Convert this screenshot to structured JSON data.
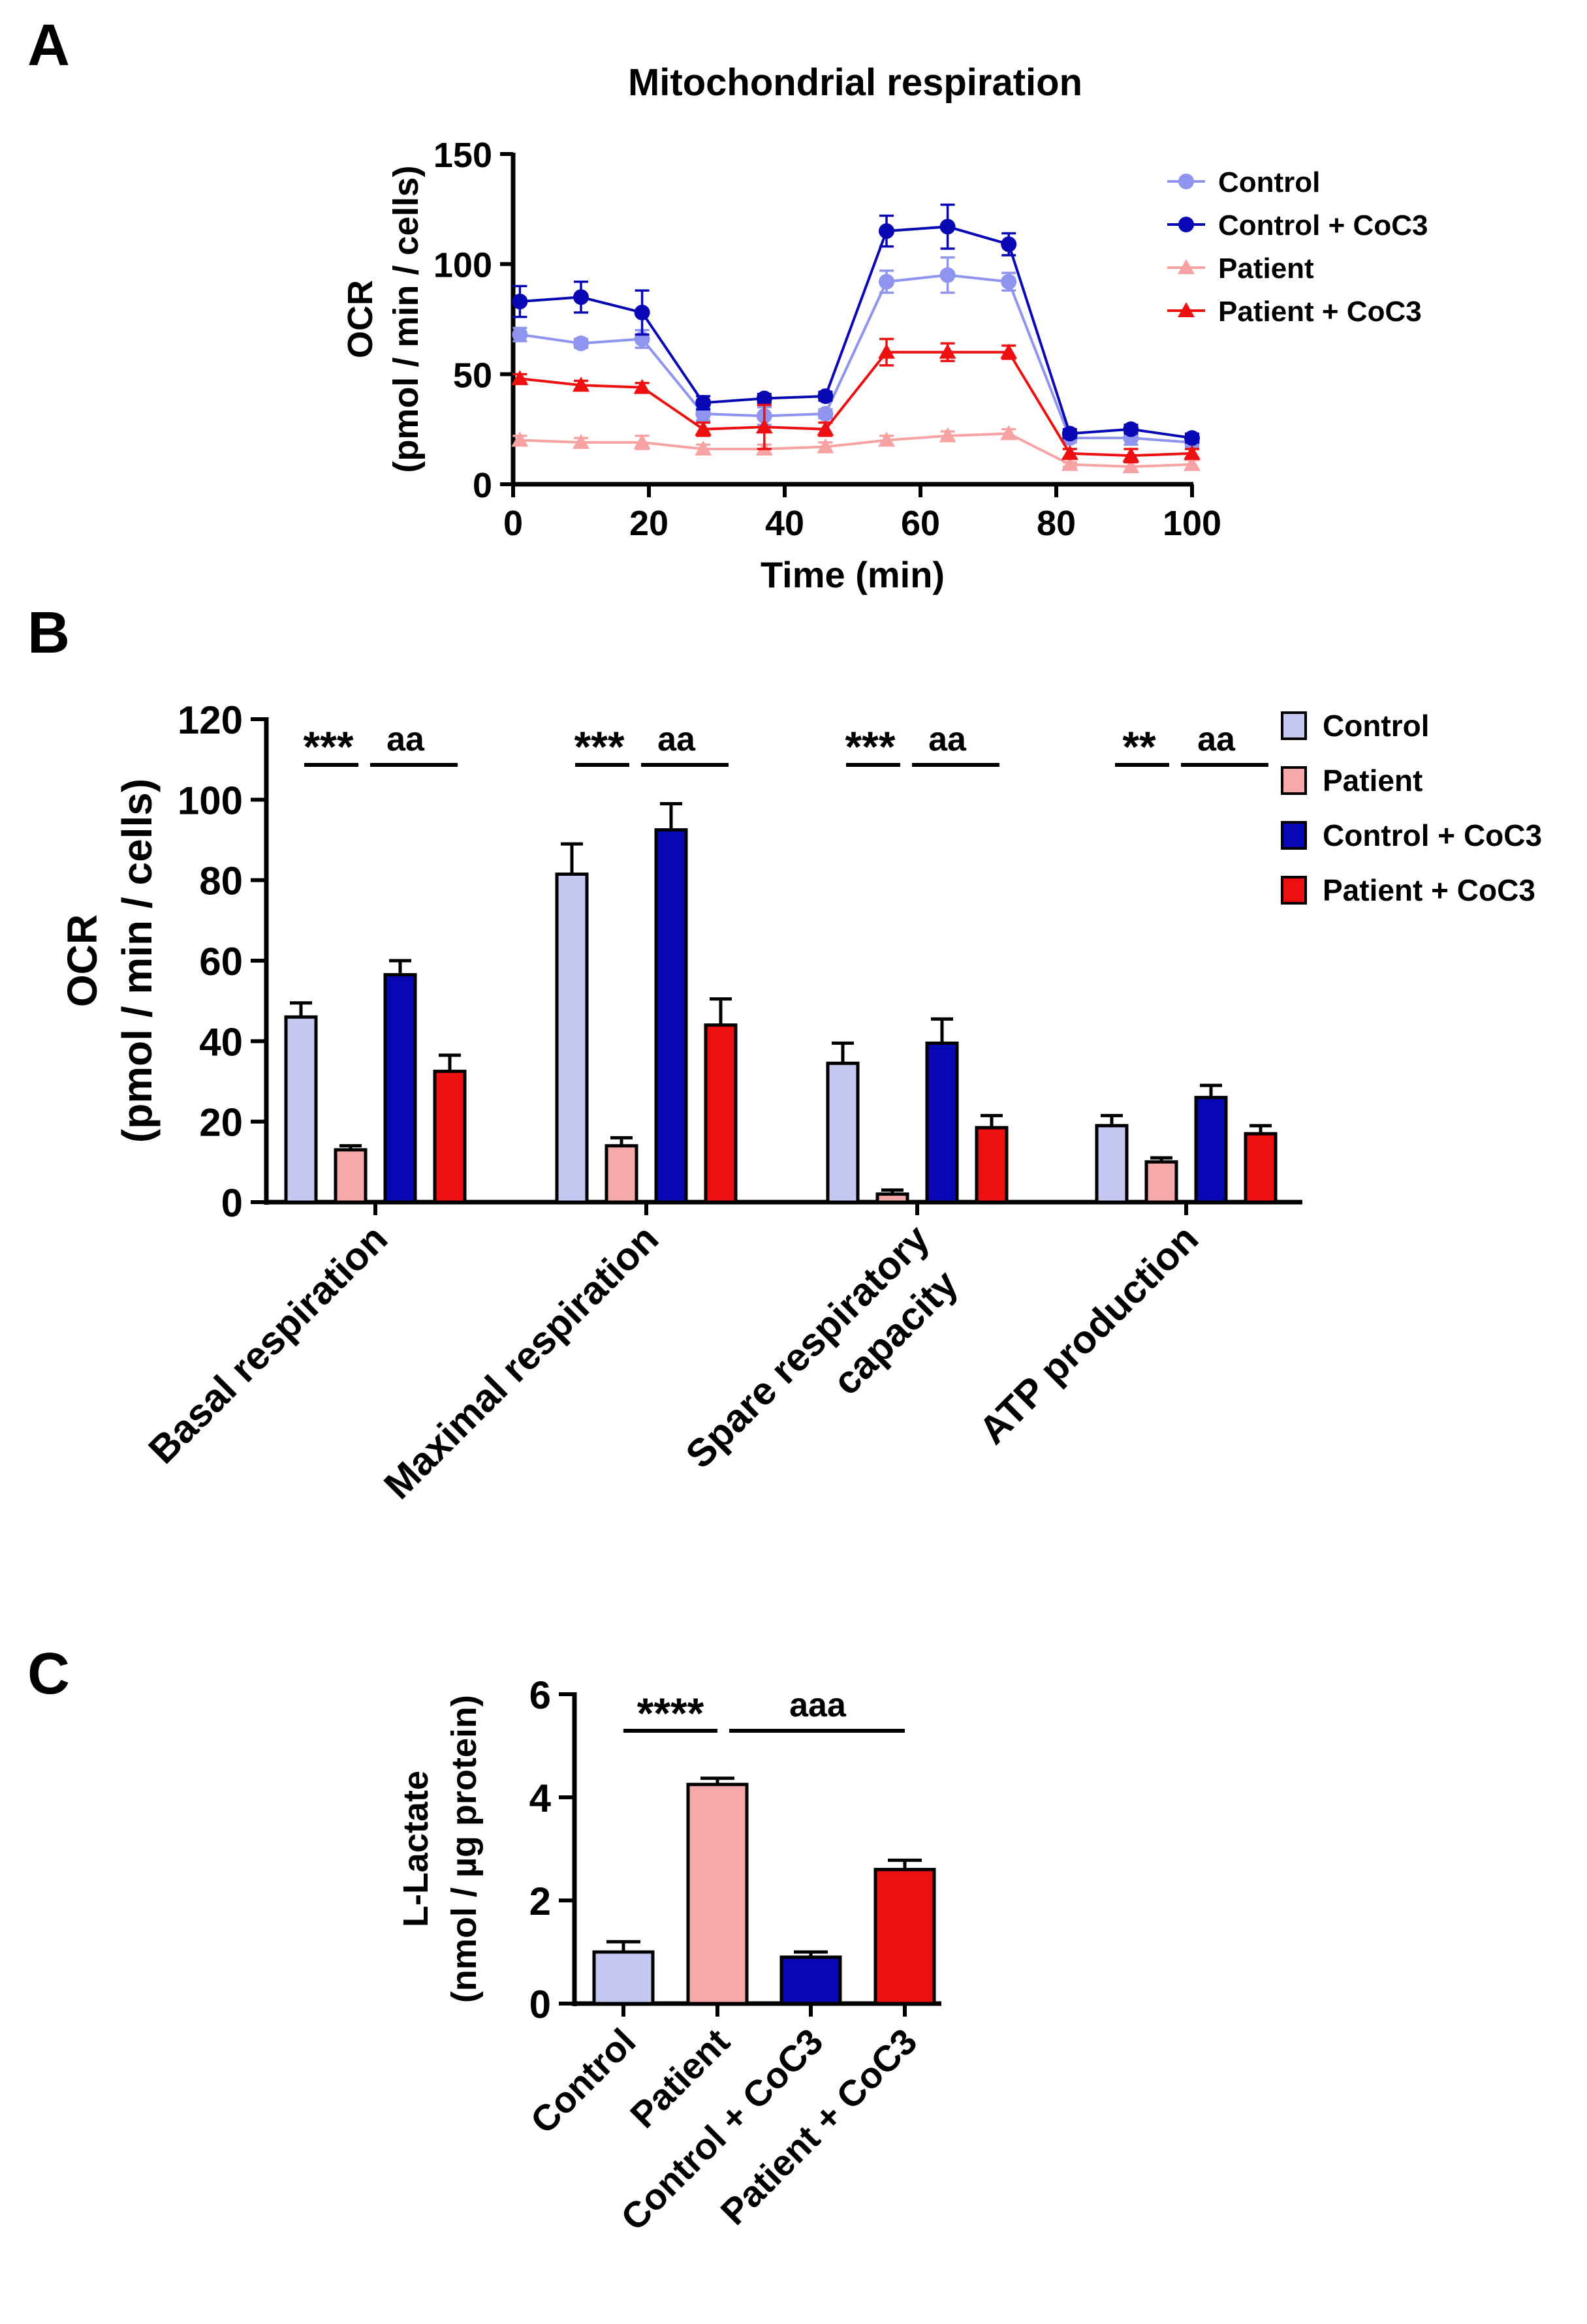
{
  "panels": {
    "A": {
      "letter": "A"
    },
    "B": {
      "letter": "B"
    },
    "C": {
      "letter": "C"
    }
  },
  "colors": {
    "control": "#c6c8f4",
    "control_line": "#8f94ee",
    "control_coc3": "#0707b3",
    "patient": "#f7a8a8",
    "patient_line": "#f7a3a3",
    "patient_coc3": "#ee1010",
    "axis": "#000000"
  },
  "chart_data": [
    {
      "id": "A",
      "type": "line",
      "title": "Mitochondrial respiration",
      "xlabel": "Time (min)",
      "ylabel": [
        "OCR",
        "(pmol / min / cells)"
      ],
      "xlim": [
        0,
        100
      ],
      "ylim": [
        0,
        150
      ],
      "xticks": [
        0,
        20,
        40,
        60,
        80,
        100
      ],
      "yticks": [
        0,
        50,
        100,
        150
      ],
      "legend_position": "top-right",
      "x": [
        1,
        10,
        19,
        28,
        37,
        46,
        55,
        64,
        73,
        82,
        91,
        100
      ],
      "series": [
        {
          "name": "Control",
          "marker": "circle",
          "color_key": "control_line",
          "values": [
            68,
            64,
            66,
            32,
            31,
            32,
            92,
            95,
            92,
            21,
            21,
            19
          ],
          "errors": [
            3,
            2,
            4,
            3,
            4,
            2,
            5,
            8,
            4,
            2,
            3,
            2
          ]
        },
        {
          "name": "Control + CoC3",
          "marker": "circle",
          "color_key": "control_coc3",
          "values": [
            83,
            85,
            78,
            37,
            39,
            40,
            115,
            117,
            109,
            23,
            25,
            21
          ],
          "errors": [
            7,
            7,
            10,
            3,
            2,
            2,
            7,
            10,
            5,
            2,
            2,
            2
          ]
        },
        {
          "name": "Patient",
          "marker": "triangle",
          "color_key": "patient_line",
          "values": [
            20,
            19,
            19,
            16,
            16,
            17,
            20,
            22,
            23,
            9,
            8,
            9
          ],
          "errors": [
            2,
            2,
            3,
            2,
            2,
            2,
            2,
            2,
            2,
            1,
            2,
            2
          ]
        },
        {
          "name": "Patient + CoC3",
          "marker": "triangle",
          "color_key": "patient_coc3",
          "values": [
            48,
            45,
            44,
            25,
            26,
            25,
            60,
            60,
            60,
            14,
            13,
            14
          ],
          "errors": [
            2,
            2,
            2,
            3,
            10,
            3,
            6,
            4,
            3,
            2,
            3,
            2
          ]
        }
      ]
    },
    {
      "id": "B",
      "type": "bar",
      "ylabel": [
        "OCR",
        "(pmol / min / cells)"
      ],
      "ylim": [
        0,
        120
      ],
      "yticks": [
        0,
        20,
        40,
        60,
        80,
        100,
        120
      ],
      "legend_position": "top-right",
      "categories": [
        [
          "Basal respiration"
        ],
        [
          "Maximal respiration"
        ],
        [
          "Spare respiratory",
          "capacity"
        ],
        [
          "ATP production"
        ]
      ],
      "series": [
        {
          "name": "Control",
          "color_key": "control",
          "values": [
            46,
            81.5,
            34.5,
            19
          ],
          "errors": [
            3.5,
            7.5,
            5,
            2.5
          ]
        },
        {
          "name": "Patient",
          "color_key": "patient",
          "values": [
            13,
            14,
            2,
            10
          ],
          "errors": [
            1,
            2,
            1,
            1
          ]
        },
        {
          "name": "Control + CoC3",
          "color_key": "control_coc3",
          "values": [
            56.5,
            92.5,
            39.5,
            26
          ],
          "errors": [
            3.5,
            6.5,
            6,
            3
          ]
        },
        {
          "name": "Patient + CoC3",
          "color_key": "patient_coc3",
          "values": [
            32.5,
            44,
            18.5,
            17
          ],
          "errors": [
            4,
            6.5,
            3,
            2
          ]
        }
      ],
      "annotations": [
        {
          "group": 0,
          "left": "***",
          "right": "aa"
        },
        {
          "group": 1,
          "left": "***",
          "right": "aa"
        },
        {
          "group": 2,
          "left": "***",
          "right": "aa"
        },
        {
          "group": 3,
          "left": "**",
          "right": "aa"
        }
      ]
    },
    {
      "id": "C",
      "type": "bar",
      "ylabel": [
        "L-Lactate",
        "(nmol / µg protein)"
      ],
      "ylim": [
        0,
        6
      ],
      "yticks": [
        0,
        2,
        4,
        6
      ],
      "categories": [
        "Control",
        "Patient",
        "Control + CoC3",
        "Patient + CoC3"
      ],
      "values": [
        1.0,
        4.25,
        0.9,
        2.6
      ],
      "errors": [
        0.2,
        0.12,
        0.1,
        0.18
      ],
      "color_keys": [
        "control",
        "patient",
        "control_coc3",
        "patient_coc3"
      ],
      "annotations": [
        {
          "from": 0,
          "to": 1,
          "label": "****"
        },
        {
          "from": 1,
          "to": 3,
          "label": "aaa"
        }
      ]
    }
  ]
}
